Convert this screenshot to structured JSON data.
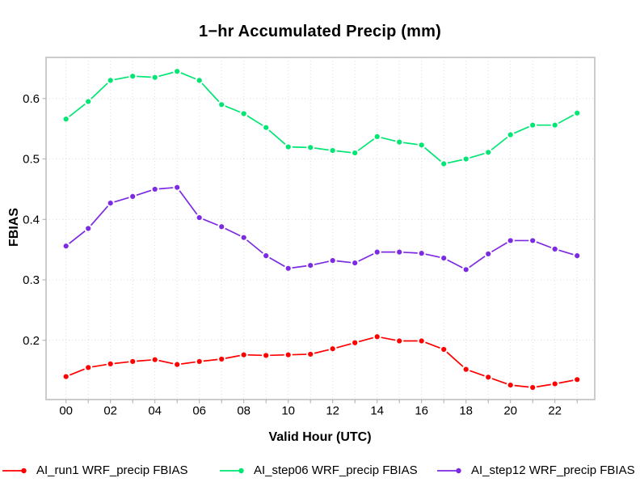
{
  "title": "1−hr Accumulated Precip (mm)",
  "axes": {
    "x_title": "Valid Hour (UTC)",
    "y_title": "FBIAS"
  },
  "style": {
    "frame_color": "#c6c6c6",
    "grid_color": "#dcdcdc",
    "tick_color": "#ababab",
    "text_color": "#000000",
    "background": "#ffffff"
  },
  "chart_data": {
    "type": "line",
    "title": "1−hr Accumulated Precip (mm)",
    "xlabel": "Valid Hour (UTC)",
    "ylabel": "FBIAS",
    "grid": true,
    "legend_position": "bottom",
    "marker": "circle",
    "line_style": "points joined by shortened segments (R type=b)",
    "x": [
      0,
      1,
      2,
      3,
      4,
      5,
      6,
      7,
      8,
      9,
      10,
      11,
      12,
      13,
      14,
      15,
      16,
      17,
      18,
      19,
      20,
      21,
      22,
      23
    ],
    "x_tick_positions": [
      0,
      2,
      4,
      6,
      8,
      10,
      12,
      14,
      16,
      18,
      20,
      22
    ],
    "x_tick_labels": [
      "00",
      "02",
      "04",
      "06",
      "08",
      "10",
      "12",
      "14",
      "16",
      "18",
      "20",
      "22"
    ],
    "x_minor_tick_every_hour": true,
    "y_ticks": [
      0.2,
      0.3,
      0.4,
      0.5,
      0.6
    ],
    "y_tick_labels": [
      "0.2",
      "0.3",
      "0.4",
      "0.5",
      "0.6"
    ],
    "ylim": [
      0.102,
      0.668
    ],
    "series": [
      {
        "name": "AI_run1 WRF_precip FBIAS",
        "color": "#ff0000",
        "values": [
          0.14,
          0.155,
          0.161,
          0.165,
          0.168,
          0.16,
          0.165,
          0.169,
          0.176,
          0.175,
          0.176,
          0.177,
          0.186,
          0.196,
          0.206,
          0.199,
          0.199,
          0.185,
          0.152,
          0.139,
          0.126,
          0.122,
          0.128,
          0.135
        ]
      },
      {
        "name": "AI_step06 WRF_precip FBIAS",
        "color": "#00e673",
        "values": [
          0.566,
          0.595,
          0.63,
          0.637,
          0.635,
          0.645,
          0.63,
          0.59,
          0.575,
          0.552,
          0.52,
          0.519,
          0.514,
          0.51,
          0.537,
          0.528,
          0.523,
          0.492,
          0.5,
          0.511,
          0.54,
          0.556,
          0.556,
          0.576
        ]
      },
      {
        "name": "AI_step12 WRF_precip FBIAS",
        "color": "#7d2be2",
        "values": [
          0.356,
          0.385,
          0.427,
          0.438,
          0.45,
          0.453,
          0.403,
          0.388,
          0.37,
          0.34,
          0.319,
          0.324,
          0.332,
          0.328,
          0.346,
          0.346,
          0.344,
          0.336,
          0.317,
          0.343,
          0.365,
          0.365,
          0.351,
          0.34
        ]
      }
    ]
  }
}
